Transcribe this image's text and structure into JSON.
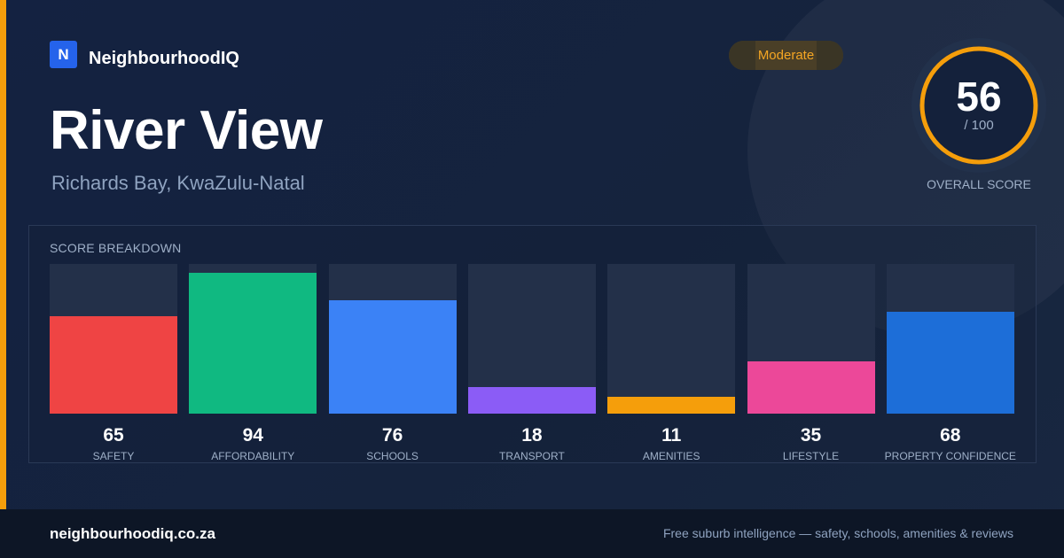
{
  "brand": {
    "logo_letter": "N",
    "name": "NeighbourhoodIQ",
    "color": "#2563eb"
  },
  "suburb": {
    "name": "River View",
    "location": "Richards Bay, KwaZulu-Natal"
  },
  "rating_badge": {
    "label": "Moderate",
    "color": "#f5a623"
  },
  "overall": {
    "score": "56",
    "max": "/ 100",
    "fraction": 0.56,
    "caption": "OVERALL SCORE",
    "ring_color": "#f59e0b"
  },
  "breakdown": {
    "title": "SCORE BREAKDOWN",
    "items": [
      {
        "label": "SAFETY",
        "value": 65,
        "display": "65",
        "color": "#ef4444"
      },
      {
        "label": "AFFORDABILITY",
        "value": 94,
        "display": "94",
        "color": "#10b981"
      },
      {
        "label": "SCHOOLS",
        "value": 76,
        "display": "76",
        "color": "#3b82f6"
      },
      {
        "label": "TRANSPORT",
        "value": 18,
        "display": "18",
        "color": "#8b5cf6"
      },
      {
        "label": "AMENITIES",
        "value": 11,
        "display": "11",
        "color": "#f59e0b"
      },
      {
        "label": "LIFESTYLE",
        "value": 35,
        "display": "35",
        "color": "#ec4899"
      },
      {
        "label": "PROPERTY CONFIDENCE",
        "value": 68,
        "display": "68",
        "color": "#1d6ed8"
      }
    ]
  },
  "footer": {
    "domain": "neighbourhoodiq.co.za",
    "tagline": "Free suburb intelligence — safety, schools, amenities & reviews"
  }
}
